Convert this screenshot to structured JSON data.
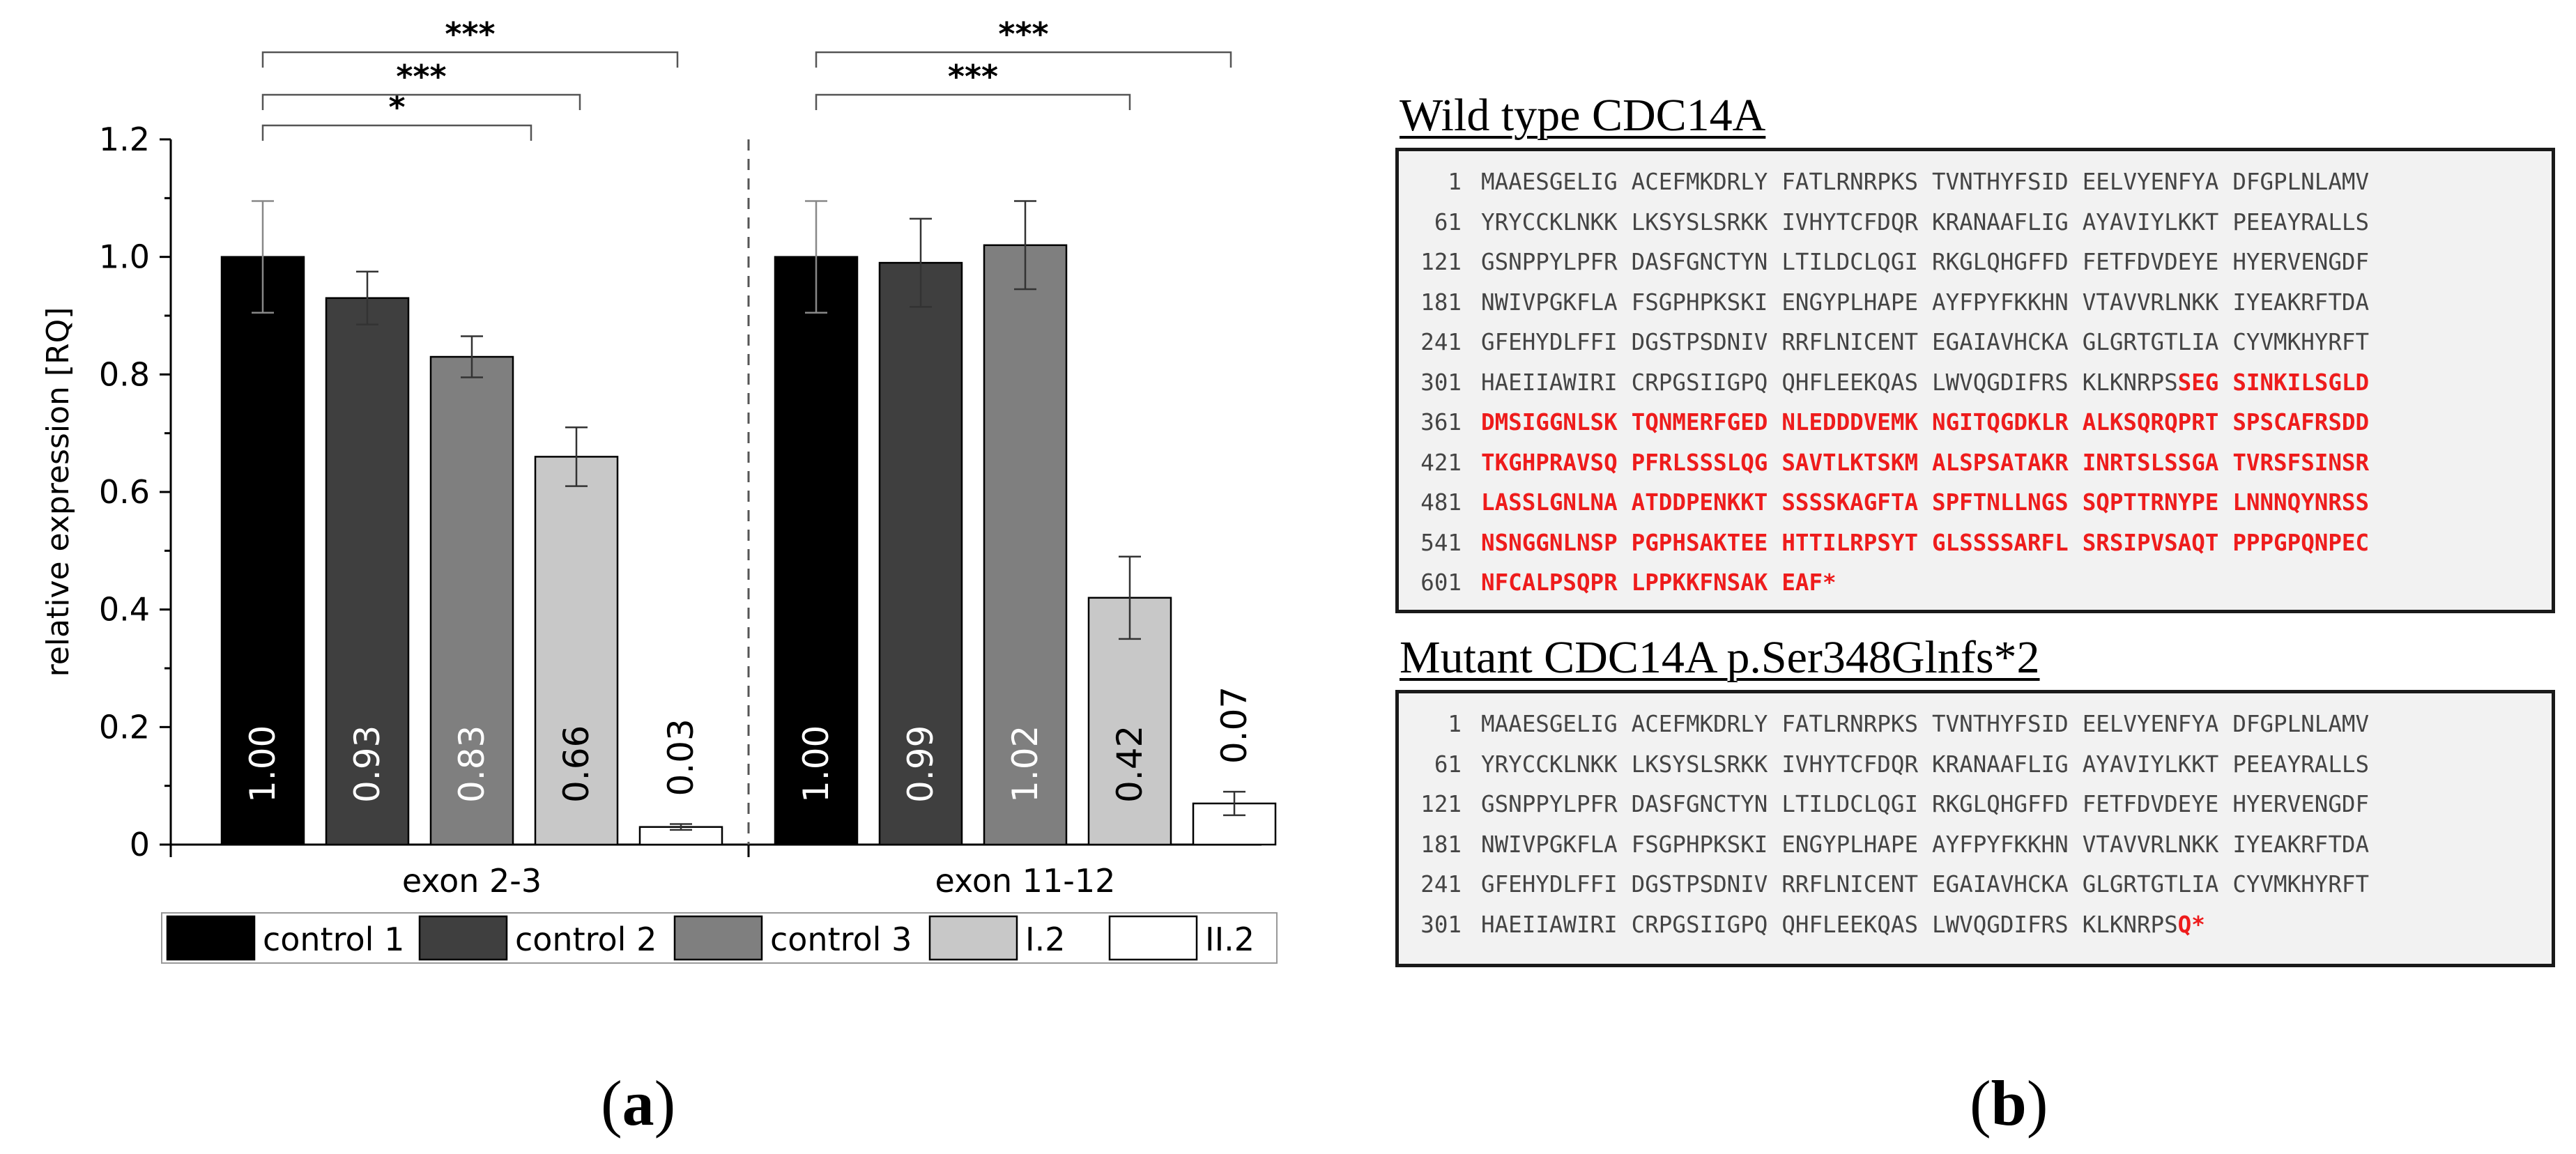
{
  "chart_data": {
    "type": "bar",
    "ylabel": "relative expression [RQ]",
    "ylim": [
      0,
      1.2
    ],
    "yticks": [
      "0",
      "0.2",
      "0.4",
      "0.6",
      "0.8",
      "1.0",
      "1.2"
    ],
    "ytick_values": [
      0,
      0.2,
      0.4,
      0.6,
      0.8,
      1.0,
      1.2
    ],
    "groups": [
      "exon 2-3",
      "exon 11-12"
    ],
    "series": [
      {
        "name": "control 1",
        "color": "#000000",
        "values": [
          1.0,
          1.0
        ],
        "errors": [
          0.095,
          0.095
        ],
        "labels": [
          "1.00",
          "1.00"
        ]
      },
      {
        "name": "control 2",
        "color": "#3f3f3f",
        "values": [
          0.93,
          0.99
        ],
        "errors": [
          0.045,
          0.075
        ],
        "labels": [
          "0.93",
          "0.99"
        ]
      },
      {
        "name": "control 3",
        "color": "#7f7f7f",
        "values": [
          0.83,
          1.02
        ],
        "errors": [
          0.035,
          0.075
        ],
        "labels": [
          "0.83",
          "1.02"
        ]
      },
      {
        "name": "I.2",
        "color": "#c8c8c8",
        "values": [
          0.66,
          0.42
        ],
        "errors": [
          0.05,
          0.07
        ],
        "labels": [
          "0.66",
          "0.42"
        ]
      },
      {
        "name": "II.2",
        "color": "#ffffff",
        "values": [
          0.03,
          0.07
        ],
        "errors": [
          0.005,
          0.02
        ],
        "labels": [
          "0.03",
          "0.07"
        ]
      }
    ],
    "significance": [
      {
        "group": 0,
        "from": 0,
        "to": 3,
        "label": "*"
      },
      {
        "group": 0,
        "from": 0,
        "to": 4,
        "label": "***"
      },
      {
        "group": 0,
        "from": 0,
        "to": 5,
        "label": "***"
      },
      {
        "group": 1,
        "from": 0,
        "to": 4,
        "label": "***"
      },
      {
        "group": 1,
        "from": 0,
        "to": 5,
        "label": "***"
      }
    ]
  },
  "panels": {
    "a_label": "a",
    "b_label": "b"
  },
  "sequences": {
    "wild_type": {
      "title": "Wild type CDC14A",
      "lines": [
        {
          "num": "1",
          "chunks": [
            {
              "t": "MAAESGELIG",
              "r": false
            },
            {
              "t": "ACEFMKDRLY",
              "r": false
            },
            {
              "t": "FATLRNRPKS",
              "r": false
            },
            {
              "t": "TVNTHYFSID",
              "r": false
            },
            {
              "t": "EELVYENFYA",
              "r": false
            },
            {
              "t": "DFGPLNLAMV",
              "r": false
            }
          ]
        },
        {
          "num": "61",
          "chunks": [
            {
              "t": "YRYCCKLNKK",
              "r": false
            },
            {
              "t": "LKSYSLSRKK",
              "r": false
            },
            {
              "t": "IVHYTCFDQR",
              "r": false
            },
            {
              "t": "KRANAAFLIG",
              "r": false
            },
            {
              "t": "AYAVIYLKKT",
              "r": false
            },
            {
              "t": "PEEAYRALLS",
              "r": false
            }
          ]
        },
        {
          "num": "121",
          "chunks": [
            {
              "t": "GSNPPYLPFR",
              "r": false
            },
            {
              "t": "DASFGNCTYN",
              "r": false
            },
            {
              "t": "LTILDCLQGI",
              "r": false
            },
            {
              "t": "RKGLQHGFFD",
              "r": false
            },
            {
              "t": "FETFDVDEYE",
              "r": false
            },
            {
              "t": "HYERVENGDF",
              "r": false
            }
          ]
        },
        {
          "num": "181",
          "chunks": [
            {
              "t": "NWIVPGKFLA",
              "r": false
            },
            {
              "t": "FSGPHPKSKI",
              "r": false
            },
            {
              "t": "ENGYPLHAPE",
              "r": false
            },
            {
              "t": "AYFPYFKKHN",
              "r": false
            },
            {
              "t": "VTAVVRLNKK",
              "r": false
            },
            {
              "t": "IYEAKRFTDA",
              "r": false
            }
          ]
        },
        {
          "num": "241",
          "chunks": [
            {
              "t": "GFEHYDLFFI",
              "r": false
            },
            {
              "t": "DGSTPSDNIV",
              "r": false
            },
            {
              "t": "RRFLNICENT",
              "r": false
            },
            {
              "t": "EGAIAVHCKA",
              "r": false
            },
            {
              "t": "GLGRTGTLIA",
              "r": false
            },
            {
              "t": "CYVMKHYRFT",
              "r": false
            }
          ]
        },
        {
          "num": "301",
          "chunks": [
            {
              "t": "HAEIIAWIRI",
              "r": false
            },
            {
              "t": "CRPGSIIGPQ",
              "r": false
            },
            {
              "t": "QHFLEEKQAS",
              "r": false
            },
            {
              "t": "LWVQGDIFRS",
              "r": false
            },
            {
              "t": "KLKNRPS",
              "r": false,
              "join": "SEG",
              "joinred": true
            },
            {
              "t": "SINKILSGLD",
              "r": true
            }
          ]
        },
        {
          "num": "361",
          "chunks": [
            {
              "t": "DMSIGGNLSK",
              "r": true
            },
            {
              "t": "TQNMERFGED",
              "r": true
            },
            {
              "t": "NLEDDDVEMK",
              "r": true
            },
            {
              "t": "NGITQGDKLR",
              "r": true
            },
            {
              "t": "ALKSQRQPRT",
              "r": true
            },
            {
              "t": "SPSCAFRSDD",
              "r": true
            }
          ]
        },
        {
          "num": "421",
          "chunks": [
            {
              "t": "TKGHPRAVSQ",
              "r": true
            },
            {
              "t": "PFRLSSSLQG",
              "r": true
            },
            {
              "t": "SAVTLKTSKM",
              "r": true
            },
            {
              "t": "ALSPSATAKR",
              "r": true
            },
            {
              "t": "INRTSLSSGA",
              "r": true
            },
            {
              "t": "TVRSFSINSR",
              "r": true
            }
          ]
        },
        {
          "num": "481",
          "chunks": [
            {
              "t": "LASSLGNLNA",
              "r": true
            },
            {
              "t": "ATDDPENKKT",
              "r": true
            },
            {
              "t": "SSSSKAGFTA",
              "r": true
            },
            {
              "t": "SPFTNLLNGS",
              "r": true
            },
            {
              "t": "SQPTTRNYPE",
              "r": true
            },
            {
              "t": "LNNNQYNRSS",
              "r": true
            }
          ]
        },
        {
          "num": "541",
          "chunks": [
            {
              "t": "NSNGGNLNSP",
              "r": true
            },
            {
              "t": "PGPHSAKTEE",
              "r": true
            },
            {
              "t": "HTTILRPSYT",
              "r": true
            },
            {
              "t": "GLSSSSARFL",
              "r": true
            },
            {
              "t": "SRSIPVSAQT",
              "r": true
            },
            {
              "t": "PPPGPQNPEC",
              "r": true
            }
          ]
        },
        {
          "num": "601",
          "chunks": [
            {
              "t": "NFCALPSQPR",
              "r": true
            },
            {
              "t": "LPPKKFNSAK",
              "r": true
            },
            {
              "t": "EAF*",
              "r": true
            }
          ]
        }
      ]
    },
    "mutant": {
      "title": "Mutant CDC14A p.Ser348Glnfs*2",
      "lines": [
        {
          "num": "1",
          "chunks": [
            {
              "t": "MAAESGELIG",
              "r": false
            },
            {
              "t": "ACEFMKDRLY",
              "r": false
            },
            {
              "t": "FATLRNRPKS",
              "r": false
            },
            {
              "t": "TVNTHYFSID",
              "r": false
            },
            {
              "t": "EELVYENFYA",
              "r": false
            },
            {
              "t": "DFGPLNLAMV",
              "r": false
            }
          ]
        },
        {
          "num": "61",
          "chunks": [
            {
              "t": "YRYCCKLNKK",
              "r": false
            },
            {
              "t": "LKSYSLSRKK",
              "r": false
            },
            {
              "t": "IVHYTCFDQR",
              "r": false
            },
            {
              "t": "KRANAAFLIG",
              "r": false
            },
            {
              "t": "AYAVIYLKKT",
              "r": false
            },
            {
              "t": "PEEAYRALLS",
              "r": false
            }
          ]
        },
        {
          "num": "121",
          "chunks": [
            {
              "t": "GSNPPYLPFR",
              "r": false
            },
            {
              "t": "DASFGNCTYN",
              "r": false
            },
            {
              "t": "LTILDCLQGI",
              "r": false
            },
            {
              "t": "RKGLQHGFFD",
              "r": false
            },
            {
              "t": "FETFDVDEYE",
              "r": false
            },
            {
              "t": "HYERVENGDF",
              "r": false
            }
          ]
        },
        {
          "num": "181",
          "chunks": [
            {
              "t": "NWIVPGKFLA",
              "r": false
            },
            {
              "t": "FSGPHPKSKI",
              "r": false
            },
            {
              "t": "ENGYPLHAPE",
              "r": false
            },
            {
              "t": "AYFPYFKKHN",
              "r": false
            },
            {
              "t": "VTAVVRLNKK",
              "r": false
            },
            {
              "t": "IYEAKRFTDA",
              "r": false
            }
          ]
        },
        {
          "num": "241",
          "chunks": [
            {
              "t": "GFEHYDLFFI",
              "r": false
            },
            {
              "t": "DGSTPSDNIV",
              "r": false
            },
            {
              "t": "RRFLNICENT",
              "r": false
            },
            {
              "t": "EGAIAVHCKA",
              "r": false
            },
            {
              "t": "GLGRTGTLIA",
              "r": false
            },
            {
              "t": "CYVMKHYRFT",
              "r": false
            }
          ]
        },
        {
          "num": "301",
          "chunks": [
            {
              "t": "HAEIIAWIRI",
              "r": false
            },
            {
              "t": "CRPGSIIGPQ",
              "r": false
            },
            {
              "t": "QHFLEEKQAS",
              "r": false
            },
            {
              "t": "LWVQGDIFRS",
              "r": false
            },
            {
              "t": "KLKNRPS",
              "r": false,
              "join": "Q*",
              "joinred": true
            }
          ]
        }
      ]
    }
  }
}
